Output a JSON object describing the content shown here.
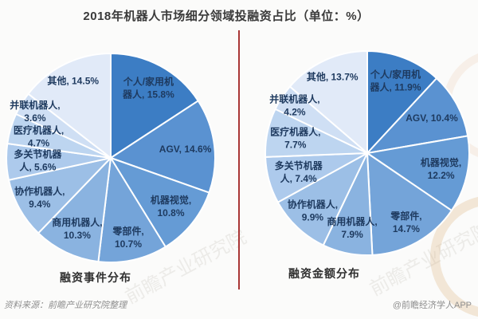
{
  "title": "2018年机器人市场细分领域投融资占比（单位：%）",
  "footer": {
    "source_note": "资料来源：前瞻产业研究院整理",
    "brand_credit": "@前瞻经济学人APP"
  },
  "watermark_text": "前瞻产业研究院",
  "style": {
    "slice_colors": [
      "#3c7dc4",
      "#5a92d1",
      "#659bd5",
      "#74a4d9",
      "#8ab3e0",
      "#9cbfe6",
      "#adcaec",
      "#bdd5f0",
      "#cfdff4",
      "#e1eaf8"
    ],
    "label_color": "#1e3a5f",
    "divider_color": "#a93636",
    "title_color": "#3a3a3a",
    "caption_color": "#2f2f2f",
    "footer_color": "#8f8f8f"
  },
  "chart_data": [
    {
      "type": "pie",
      "title": "融资事件分布",
      "unit": "%",
      "start_angle_deg": 0,
      "direction": "clockwise",
      "categories": [
        "个人/家用机器人",
        "AGV",
        "机器视觉",
        "零部件",
        "商用机器人",
        "协作机器人",
        "多关节机器人",
        "医疗机器人",
        "并联机器人",
        "其他"
      ],
      "values": [
        15.8,
        14.6,
        10.8,
        10.7,
        10.3,
        9.4,
        5.6,
        4.7,
        3.6,
        14.5
      ],
      "label_lines": [
        [
          "个人/家用机",
          "器人, 15.8%"
        ],
        [
          "AGV, 14.6%"
        ],
        [
          "机器视觉,",
          "10.8%"
        ],
        [
          "零部件,",
          "10.7%"
        ],
        [
          "商用机器人,",
          "10.3%"
        ],
        [
          "协作机器人,",
          "9.4%"
        ],
        [
          "多关节机器",
          "人, 5.6%"
        ],
        [
          "医疗机器人,",
          "4.7%"
        ],
        [
          "并联机器人,",
          "3.6%"
        ],
        [
          "其他, 14.5%"
        ]
      ]
    },
    {
      "type": "pie",
      "title": "融资金额分布",
      "unit": "%",
      "start_angle_deg": 0,
      "direction": "clockwise",
      "categories": [
        "个人/家用机器人",
        "AGV",
        "机器视觉",
        "零部件",
        "商用机器人",
        "协作机器人",
        "多关节机器人",
        "医疗机器人",
        "并联机器人",
        "其他"
      ],
      "values": [
        11.9,
        10.4,
        12.2,
        14.7,
        7.9,
        9.9,
        7.4,
        7.7,
        4.2,
        13.7
      ],
      "label_lines": [
        [
          "个人/家用机",
          "器人, 11.9%"
        ],
        [
          "AGV, 10.4%"
        ],
        [
          "机器视觉,",
          "12.2%"
        ],
        [
          "零部件,",
          "14.7%"
        ],
        [
          "商用机器人,",
          "7.9%"
        ],
        [
          "协作机器人,",
          "9.9%"
        ],
        [
          "多关节机器",
          "人, 7.4%"
        ],
        [
          "医疗机器人,",
          "7.7%"
        ],
        [
          "并联机器人,",
          "4.2%"
        ],
        [
          "其他, 13.7%"
        ]
      ]
    }
  ]
}
